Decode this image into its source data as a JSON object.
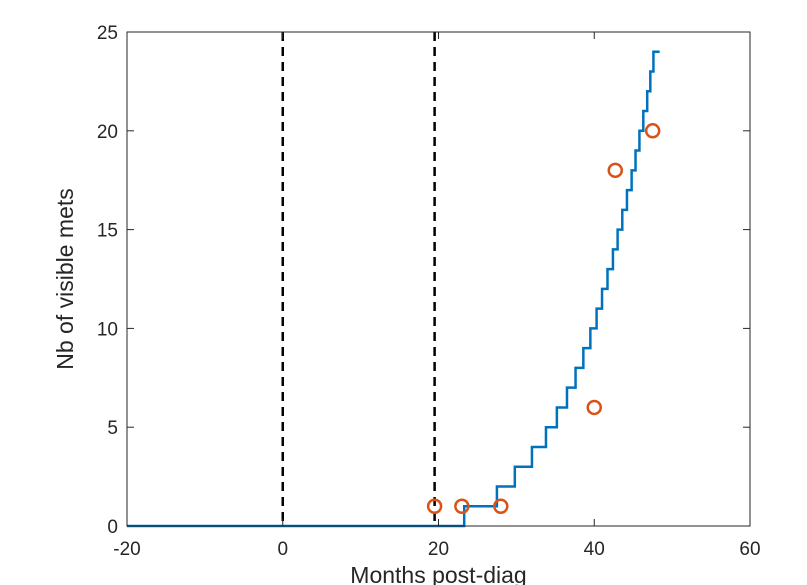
{
  "chart_data": {
    "type": "line",
    "title": "",
    "xlabel": "Months post-diag",
    "ylabel": "Nb of visible mets",
    "xlim": [
      -20,
      60
    ],
    "ylim": [
      0,
      25
    ],
    "xticks": [
      -20,
      0,
      20,
      40,
      60
    ],
    "yticks": [
      0,
      5,
      10,
      15,
      20,
      25
    ],
    "grid": false,
    "legend": "none",
    "vertical_lines": [
      {
        "x": 0,
        "style": "dashed",
        "color": "#000000"
      },
      {
        "x": 19.5,
        "style": "dashed",
        "color": "#000000"
      }
    ],
    "series": [
      {
        "kind": "step-line",
        "color": "#0072BD",
        "x": [
          -20,
          23.3,
          23.3,
          27.5,
          27.5,
          29.8,
          29.8,
          32.0,
          32.0,
          33.8,
          33.8,
          35.2,
          35.2,
          36.5,
          36.5,
          37.6,
          37.6,
          38.6,
          38.6,
          39.5,
          39.5,
          40.3,
          40.3,
          41.0,
          41.0,
          41.7,
          41.7,
          42.4,
          42.4,
          43.0,
          43.0,
          43.6,
          43.6,
          44.2,
          44.2,
          44.8,
          44.8,
          45.3,
          45.3,
          45.8,
          45.8,
          46.3,
          46.3,
          46.8,
          46.8,
          47.2,
          47.2,
          47.6,
          47.6,
          48.0,
          48.0,
          48.4,
          48.4
        ],
        "y": [
          0,
          0,
          1,
          1,
          2,
          2,
          3,
          3,
          4,
          4,
          5,
          5,
          6,
          6,
          7,
          7,
          8,
          8,
          9,
          9,
          10,
          10,
          11,
          11,
          12,
          12,
          13,
          13,
          14,
          14,
          15,
          15,
          16,
          16,
          17,
          17,
          18,
          18,
          19,
          19,
          20,
          20,
          21,
          21,
          22,
          22,
          23,
          23,
          24,
          24,
          24,
          24,
          24
        ]
      },
      {
        "kind": "scatter",
        "marker": "circle-open",
        "color": "#D95319",
        "points": [
          {
            "x": 19.5,
            "y": 1
          },
          {
            "x": 23.0,
            "y": 1
          },
          {
            "x": 28.0,
            "y": 1
          },
          {
            "x": 40.0,
            "y": 6
          },
          {
            "x": 42.7,
            "y": 18
          },
          {
            "x": 47.5,
            "y": 20
          }
        ]
      }
    ]
  }
}
